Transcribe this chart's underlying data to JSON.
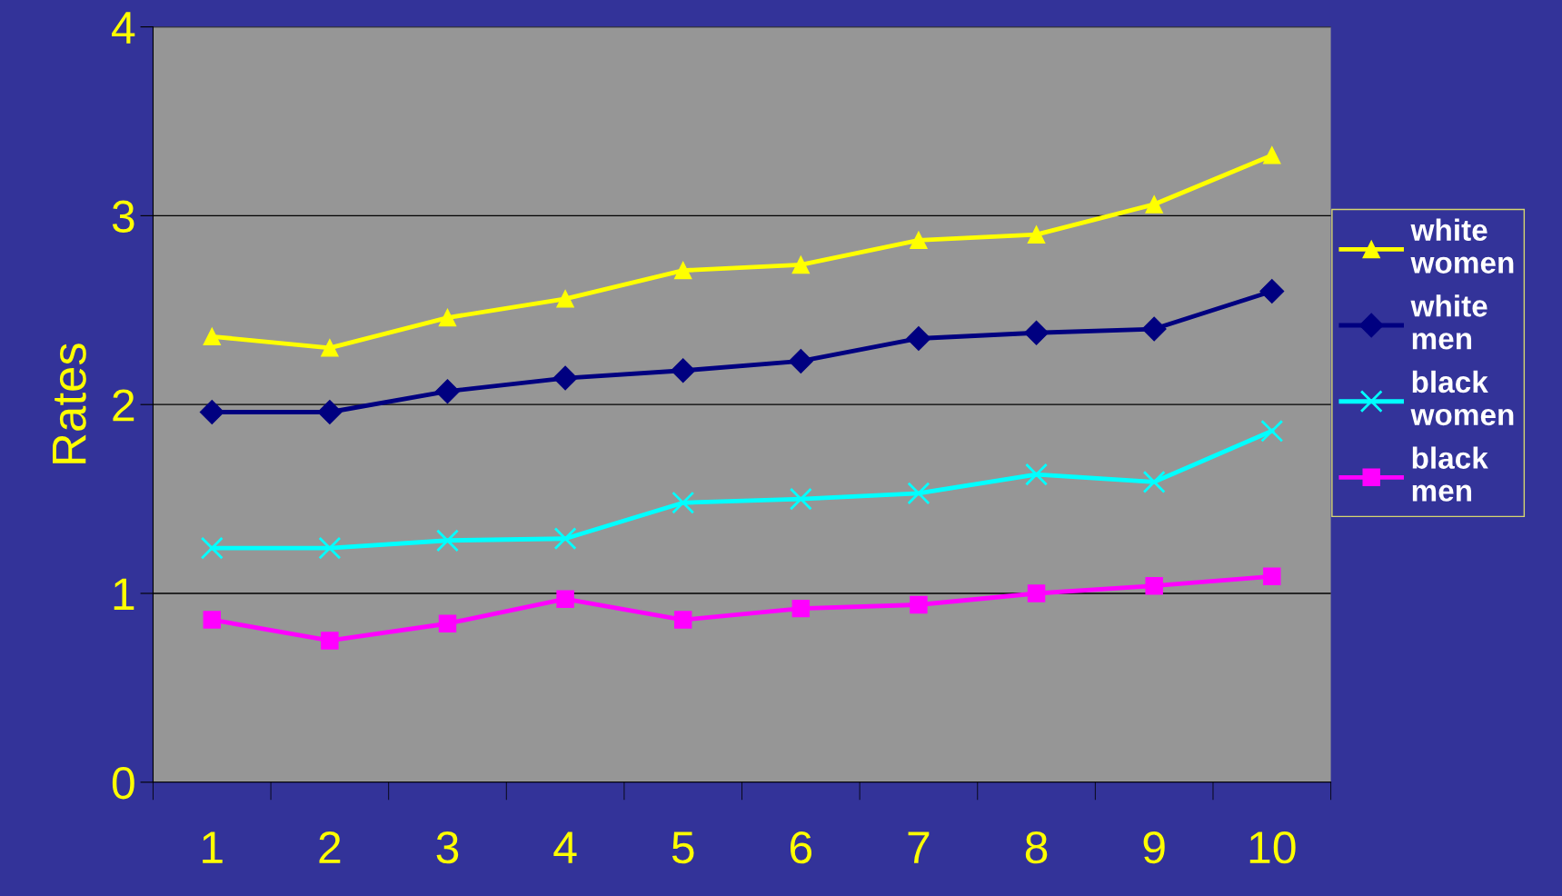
{
  "chart_data": {
    "type": "line",
    "ylabel": "Rates",
    "categories": [
      "1",
      "2",
      "3",
      "4",
      "5",
      "6",
      "7",
      "8",
      "9",
      "10"
    ],
    "series": [
      {
        "name": "white women",
        "color": "#ffff00",
        "marker": "triangle",
        "values": [
          2.36,
          2.3,
          2.46,
          2.56,
          2.71,
          2.74,
          2.87,
          2.9,
          3.06,
          3.32
        ]
      },
      {
        "name": "white men",
        "color": "#000080",
        "marker": "diamond",
        "values": [
          1.96,
          1.96,
          2.07,
          2.14,
          2.18,
          2.23,
          2.35,
          2.38,
          2.4,
          2.6
        ]
      },
      {
        "name": "black women",
        "color": "#00ffff",
        "marker": "cross",
        "values": [
          1.24,
          1.24,
          1.28,
          1.29,
          1.48,
          1.5,
          1.53,
          1.63,
          1.59,
          1.86
        ]
      },
      {
        "name": "black men",
        "color": "#ff00ff",
        "marker": "square",
        "values": [
          0.86,
          0.75,
          0.84,
          0.97,
          0.86,
          0.92,
          0.94,
          1.0,
          1.04,
          1.09
        ]
      }
    ],
    "ylim": [
      0,
      4
    ],
    "yticks": [
      0,
      1,
      2,
      3,
      4
    ],
    "grid": "y",
    "legend": "right"
  }
}
